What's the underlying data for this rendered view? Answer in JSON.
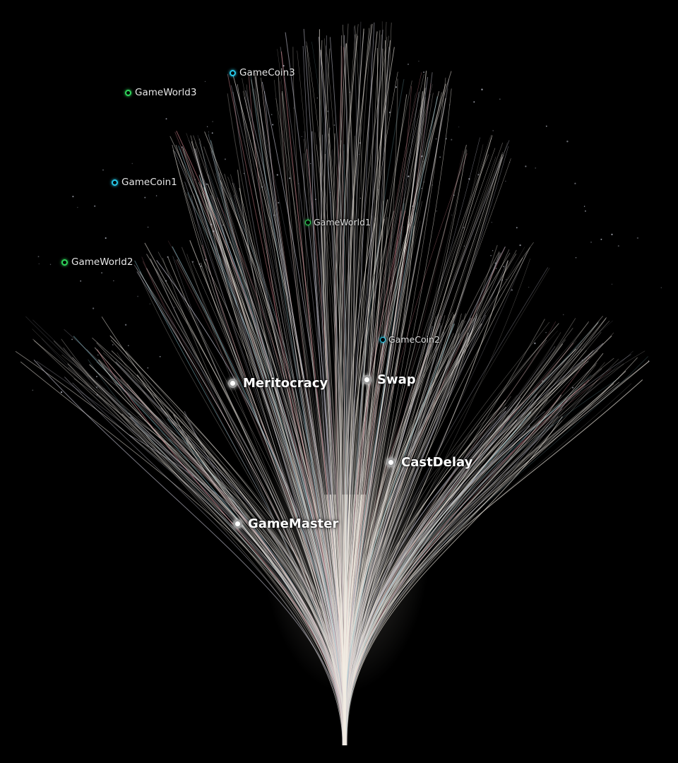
{
  "colors": {
    "background": "#000000",
    "strand_main": "#e8e2da",
    "strand_tint_red": "#d98a94",
    "strand_tint_cyan": "#8fc9d6",
    "ring_green": "#2fd45a",
    "ring_cyan": "#27c6e6",
    "node_white": "#ffffff"
  },
  "nodes": {
    "gamecoin3": {
      "label": "GameCoin3",
      "kind": "ring",
      "color": "#27c6e6"
    },
    "gameworld3": {
      "label": "GameWorld3",
      "kind": "ring",
      "color": "#2fd45a"
    },
    "gamecoin1": {
      "label": "GameCoin1",
      "kind": "ring",
      "color": "#27c6e6"
    },
    "gameworld1": {
      "label": "GameWorld1",
      "kind": "ring",
      "color": "#2fd45a"
    },
    "gameworld2": {
      "label": "GameWorld2",
      "kind": "ring",
      "color": "#2fd45a"
    },
    "gamecoin2": {
      "label": "GameCoin2",
      "kind": "ring",
      "color": "#27c6e6"
    },
    "meritocracy": {
      "label": "Meritocracy",
      "kind": "hub"
    },
    "swap": {
      "label": "Swap",
      "kind": "hub"
    },
    "castdelay": {
      "label": "CastDelay",
      "kind": "hub"
    },
    "gamemaster": {
      "label": "GameMaster",
      "kind": "hub"
    }
  }
}
